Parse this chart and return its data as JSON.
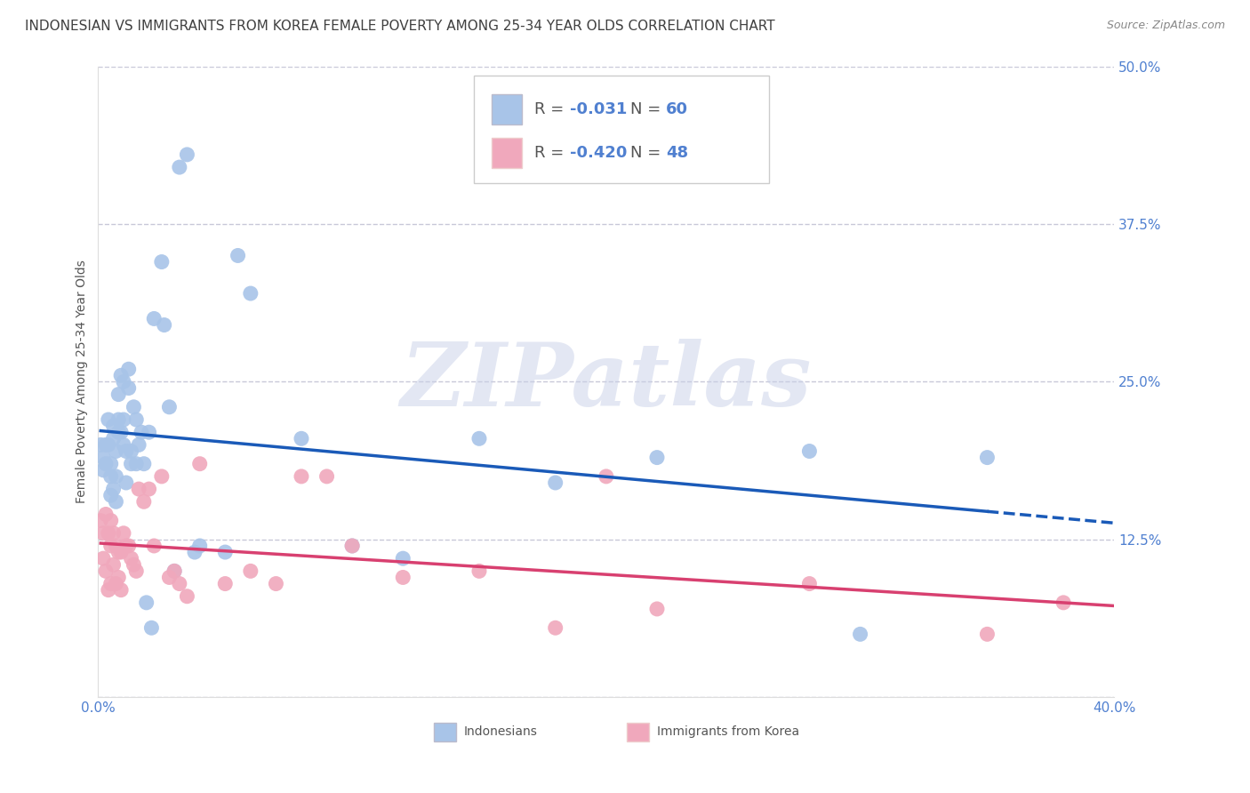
{
  "title": "INDONESIAN VS IMMIGRANTS FROM KOREA FEMALE POVERTY AMONG 25-34 YEAR OLDS CORRELATION CHART",
  "source": "Source: ZipAtlas.com",
  "ylabel_label": "Female Poverty Among 25-34 Year Olds",
  "xlim": [
    0.0,
    0.4
  ],
  "ylim": [
    0.0,
    0.5
  ],
  "xticks": [
    0.0,
    0.1,
    0.2,
    0.3,
    0.4
  ],
  "yticks": [
    0.0,
    0.125,
    0.25,
    0.375,
    0.5
  ],
  "ytick_labels": [
    "",
    "12.5%",
    "25.0%",
    "37.5%",
    "50.0%"
  ],
  "xtick_labels": [
    "0.0%",
    "",
    "",
    "",
    "40.0%"
  ],
  "background_color": "#ffffff",
  "grid_color": "#c8c8d8",
  "indonesian_color": "#a8c4e8",
  "korean_color": "#f0a8bc",
  "indonesian_line_color": "#1a5ab8",
  "korean_line_color": "#d84070",
  "tick_color": "#5080d0",
  "legend_r1": "-0.031",
  "legend_n1": "60",
  "legend_r2": "-0.420",
  "legend_n2": "48",
  "indonesian_x": [
    0.001,
    0.002,
    0.002,
    0.003,
    0.003,
    0.004,
    0.004,
    0.005,
    0.005,
    0.005,
    0.006,
    0.006,
    0.006,
    0.007,
    0.007,
    0.007,
    0.008,
    0.008,
    0.008,
    0.009,
    0.009,
    0.01,
    0.01,
    0.01,
    0.011,
    0.011,
    0.012,
    0.012,
    0.013,
    0.013,
    0.014,
    0.015,
    0.015,
    0.016,
    0.017,
    0.018,
    0.019,
    0.02,
    0.021,
    0.022,
    0.025,
    0.026,
    0.028,
    0.03,
    0.032,
    0.035,
    0.038,
    0.04,
    0.05,
    0.055,
    0.06,
    0.08,
    0.1,
    0.12,
    0.15,
    0.18,
    0.22,
    0.28,
    0.3,
    0.35
  ],
  "indonesian_y": [
    0.2,
    0.19,
    0.18,
    0.2,
    0.185,
    0.2,
    0.22,
    0.185,
    0.175,
    0.16,
    0.215,
    0.205,
    0.165,
    0.195,
    0.175,
    0.155,
    0.24,
    0.22,
    0.21,
    0.255,
    0.21,
    0.25,
    0.22,
    0.2,
    0.195,
    0.17,
    0.26,
    0.245,
    0.195,
    0.185,
    0.23,
    0.22,
    0.185,
    0.2,
    0.21,
    0.185,
    0.075,
    0.21,
    0.055,
    0.3,
    0.345,
    0.295,
    0.23,
    0.1,
    0.42,
    0.43,
    0.115,
    0.12,
    0.115,
    0.35,
    0.32,
    0.205,
    0.12,
    0.11,
    0.205,
    0.17,
    0.19,
    0.195,
    0.05,
    0.19
  ],
  "korean_x": [
    0.001,
    0.002,
    0.002,
    0.003,
    0.003,
    0.004,
    0.004,
    0.005,
    0.005,
    0.005,
    0.006,
    0.006,
    0.007,
    0.007,
    0.008,
    0.008,
    0.009,
    0.009,
    0.01,
    0.011,
    0.012,
    0.013,
    0.014,
    0.015,
    0.016,
    0.018,
    0.02,
    0.022,
    0.025,
    0.028,
    0.03,
    0.032,
    0.035,
    0.04,
    0.05,
    0.06,
    0.07,
    0.08,
    0.09,
    0.1,
    0.12,
    0.15,
    0.18,
    0.2,
    0.22,
    0.28,
    0.35,
    0.38
  ],
  "korean_y": [
    0.14,
    0.13,
    0.11,
    0.145,
    0.1,
    0.13,
    0.085,
    0.14,
    0.12,
    0.09,
    0.13,
    0.105,
    0.12,
    0.09,
    0.115,
    0.095,
    0.115,
    0.085,
    0.13,
    0.12,
    0.12,
    0.11,
    0.105,
    0.1,
    0.165,
    0.155,
    0.165,
    0.12,
    0.175,
    0.095,
    0.1,
    0.09,
    0.08,
    0.185,
    0.09,
    0.1,
    0.09,
    0.175,
    0.175,
    0.12,
    0.095,
    0.1,
    0.055,
    0.175,
    0.07,
    0.09,
    0.05,
    0.075
  ],
  "watermark_text": "ZIPatlas",
  "watermark_color": "#c8d0e8",
  "title_fontsize": 11,
  "axis_label_fontsize": 10,
  "tick_fontsize": 11,
  "legend_fontsize": 13
}
